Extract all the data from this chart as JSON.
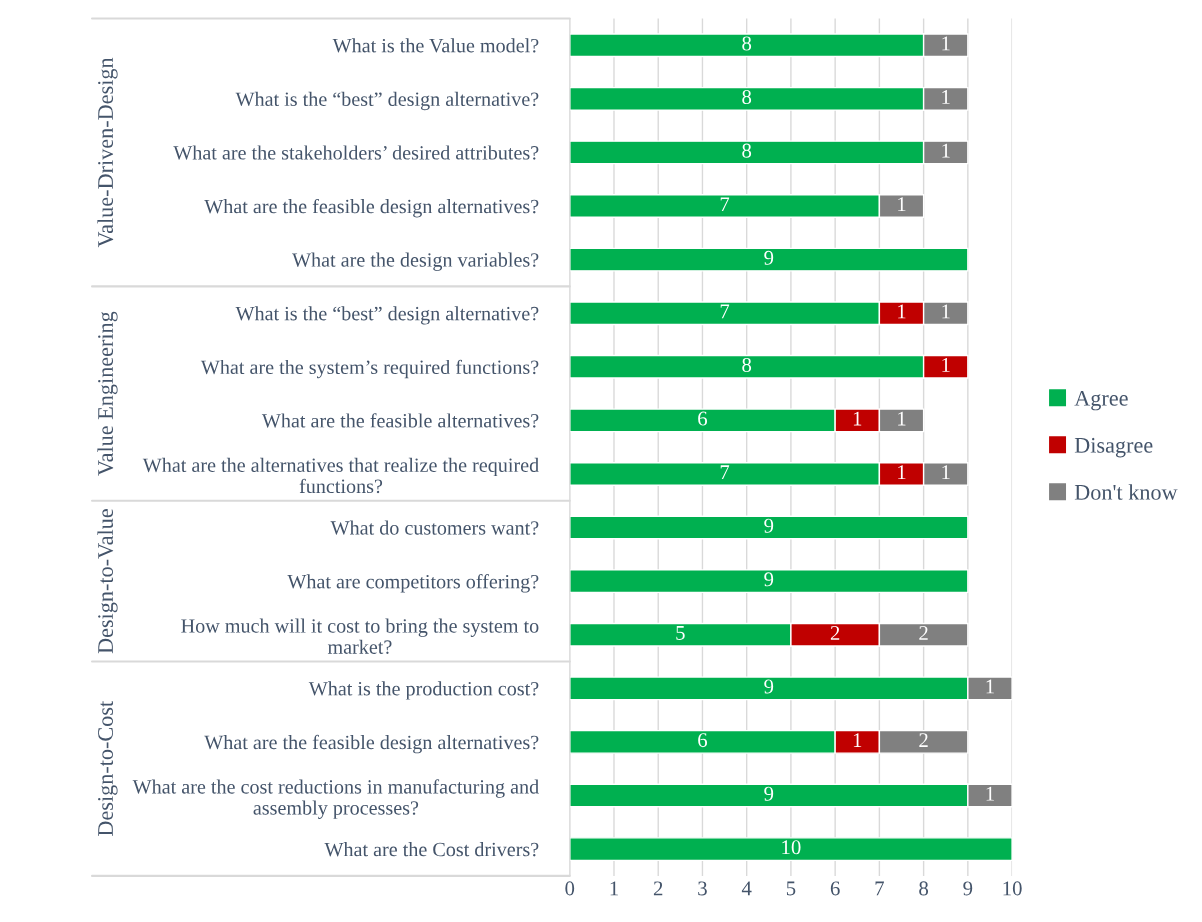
{
  "chart_data": {
    "type": "bar",
    "orientation": "horizontal",
    "stacked": true,
    "data_labels": true,
    "grid": "x",
    "legend": "right",
    "categories": [
      "What is the Value model?",
      "What is the “best” design alternative?",
      "What are the stakeholders’ desired attributes?",
      "What are the feasible design alternatives?",
      "What are the design variables?",
      "What is the “best” design alternative?",
      "What are the system’s required functions?",
      "What are the feasible alternatives?",
      "What are the alternatives that realize the required\nfunctions?",
      "What do customers want?",
      "What are competitors offering?",
      "How much will it cost to bring the system to\nmarket?",
      "What is the production cost?",
      "What are the feasible design alternatives?",
      "What are the cost reductions in manufacturing and\nassembly processes?",
      "What are the Cost drivers?"
    ],
    "series": [
      {
        "name": "Agree",
        "color": "#00b050",
        "values": [
          8,
          8,
          8,
          7,
          9,
          7,
          8,
          6,
          7,
          9,
          9,
          5,
          9,
          6,
          9,
          10
        ]
      },
      {
        "name": "Disagree",
        "color": "#c00000",
        "values": [
          null,
          null,
          null,
          null,
          null,
          1,
          1,
          1,
          1,
          null,
          null,
          2,
          null,
          1,
          null,
          null
        ]
      },
      {
        "name": "Don't know",
        "color": "#808080",
        "values": [
          1,
          1,
          1,
          1,
          null,
          1,
          null,
          1,
          1,
          null,
          null,
          2,
          1,
          2,
          1,
          null
        ]
      }
    ],
    "xlim": [
      0,
      10
    ],
    "xticks": [
      0,
      1,
      2,
      3,
      4,
      5,
      6,
      7,
      8,
      9,
      10
    ],
    "annotations": [
      "Value-Driven-Design",
      "Value Engineering",
      "Design-to-Value",
      "Design-to-Cost"
    ]
  }
}
